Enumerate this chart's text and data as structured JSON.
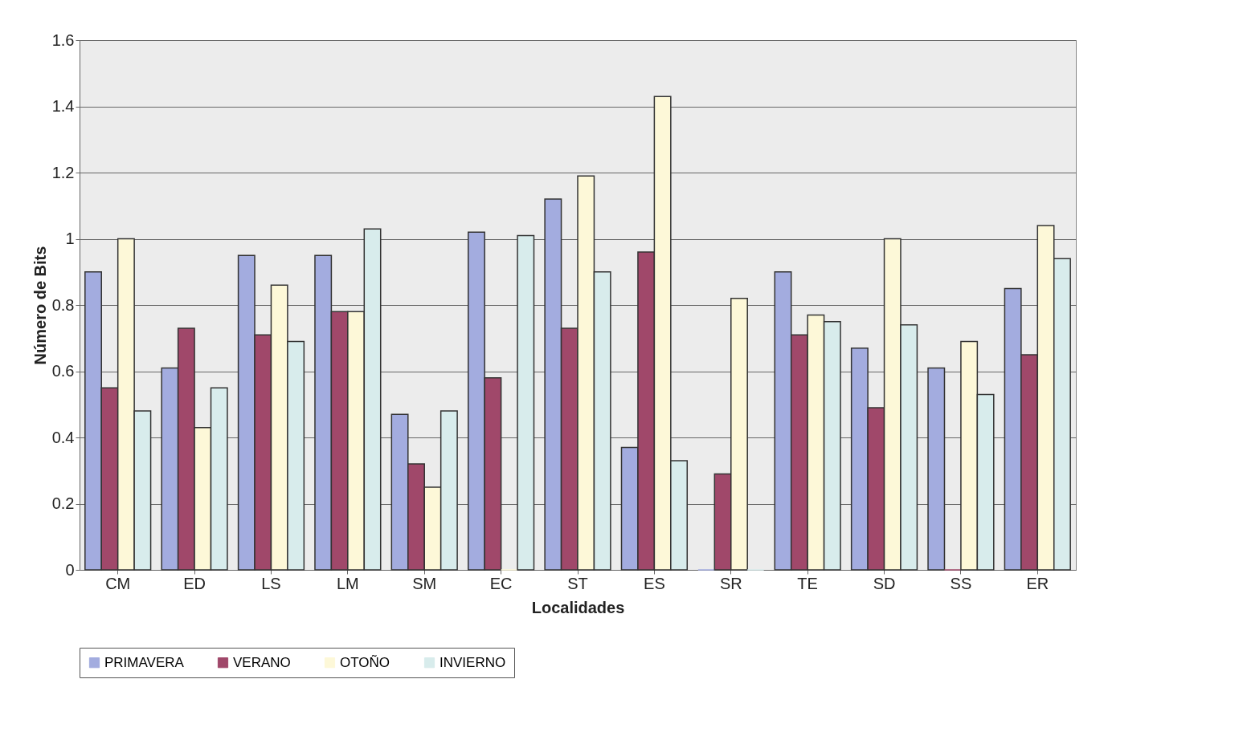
{
  "chart_data": {
    "type": "bar",
    "xlabel": "Localidades",
    "ylabel": "Número de Bits",
    "categories": [
      "CM",
      "ED",
      "LS",
      "LM",
      "SM",
      "EC",
      "ST",
      "ES",
      "SR",
      "TE",
      "SD",
      "SS",
      "ER"
    ],
    "series": [
      {
        "name": "PRIMAVERA",
        "color": "#a3acdf",
        "values": [
          0.9,
          0.61,
          0.95,
          0.95,
          0.47,
          1.02,
          1.12,
          0.37,
          0,
          0.9,
          0.67,
          0.61,
          0.85
        ]
      },
      {
        "name": "VERANO",
        "color": "#a0486a",
        "values": [
          0.55,
          0.73,
          0.71,
          0.78,
          0.32,
          0.58,
          0.73,
          0.96,
          0.29,
          0.71,
          0.49,
          0,
          0.65
        ]
      },
      {
        "name": "OTOÑO",
        "color": "#fdf8d8",
        "values": [
          1.0,
          0.43,
          0.86,
          0.78,
          0.25,
          0,
          1.19,
          1.43,
          0.82,
          0.77,
          1.0,
          0.69,
          1.04
        ]
      },
      {
        "name": "INVIERNO",
        "color": "#d8ecec",
        "values": [
          0.48,
          0.55,
          0.69,
          1.03,
          0.48,
          1.01,
          0.9,
          0.33,
          0,
          0.75,
          0.74,
          0.53,
          0.94
        ]
      }
    ],
    "ylim": [
      0,
      1.6
    ],
    "yticks": [
      0,
      0.2,
      0.4,
      0.6,
      0.8,
      1,
      1.2,
      1.4,
      1.6
    ],
    "grid": "y",
    "legend": "bottom"
  }
}
